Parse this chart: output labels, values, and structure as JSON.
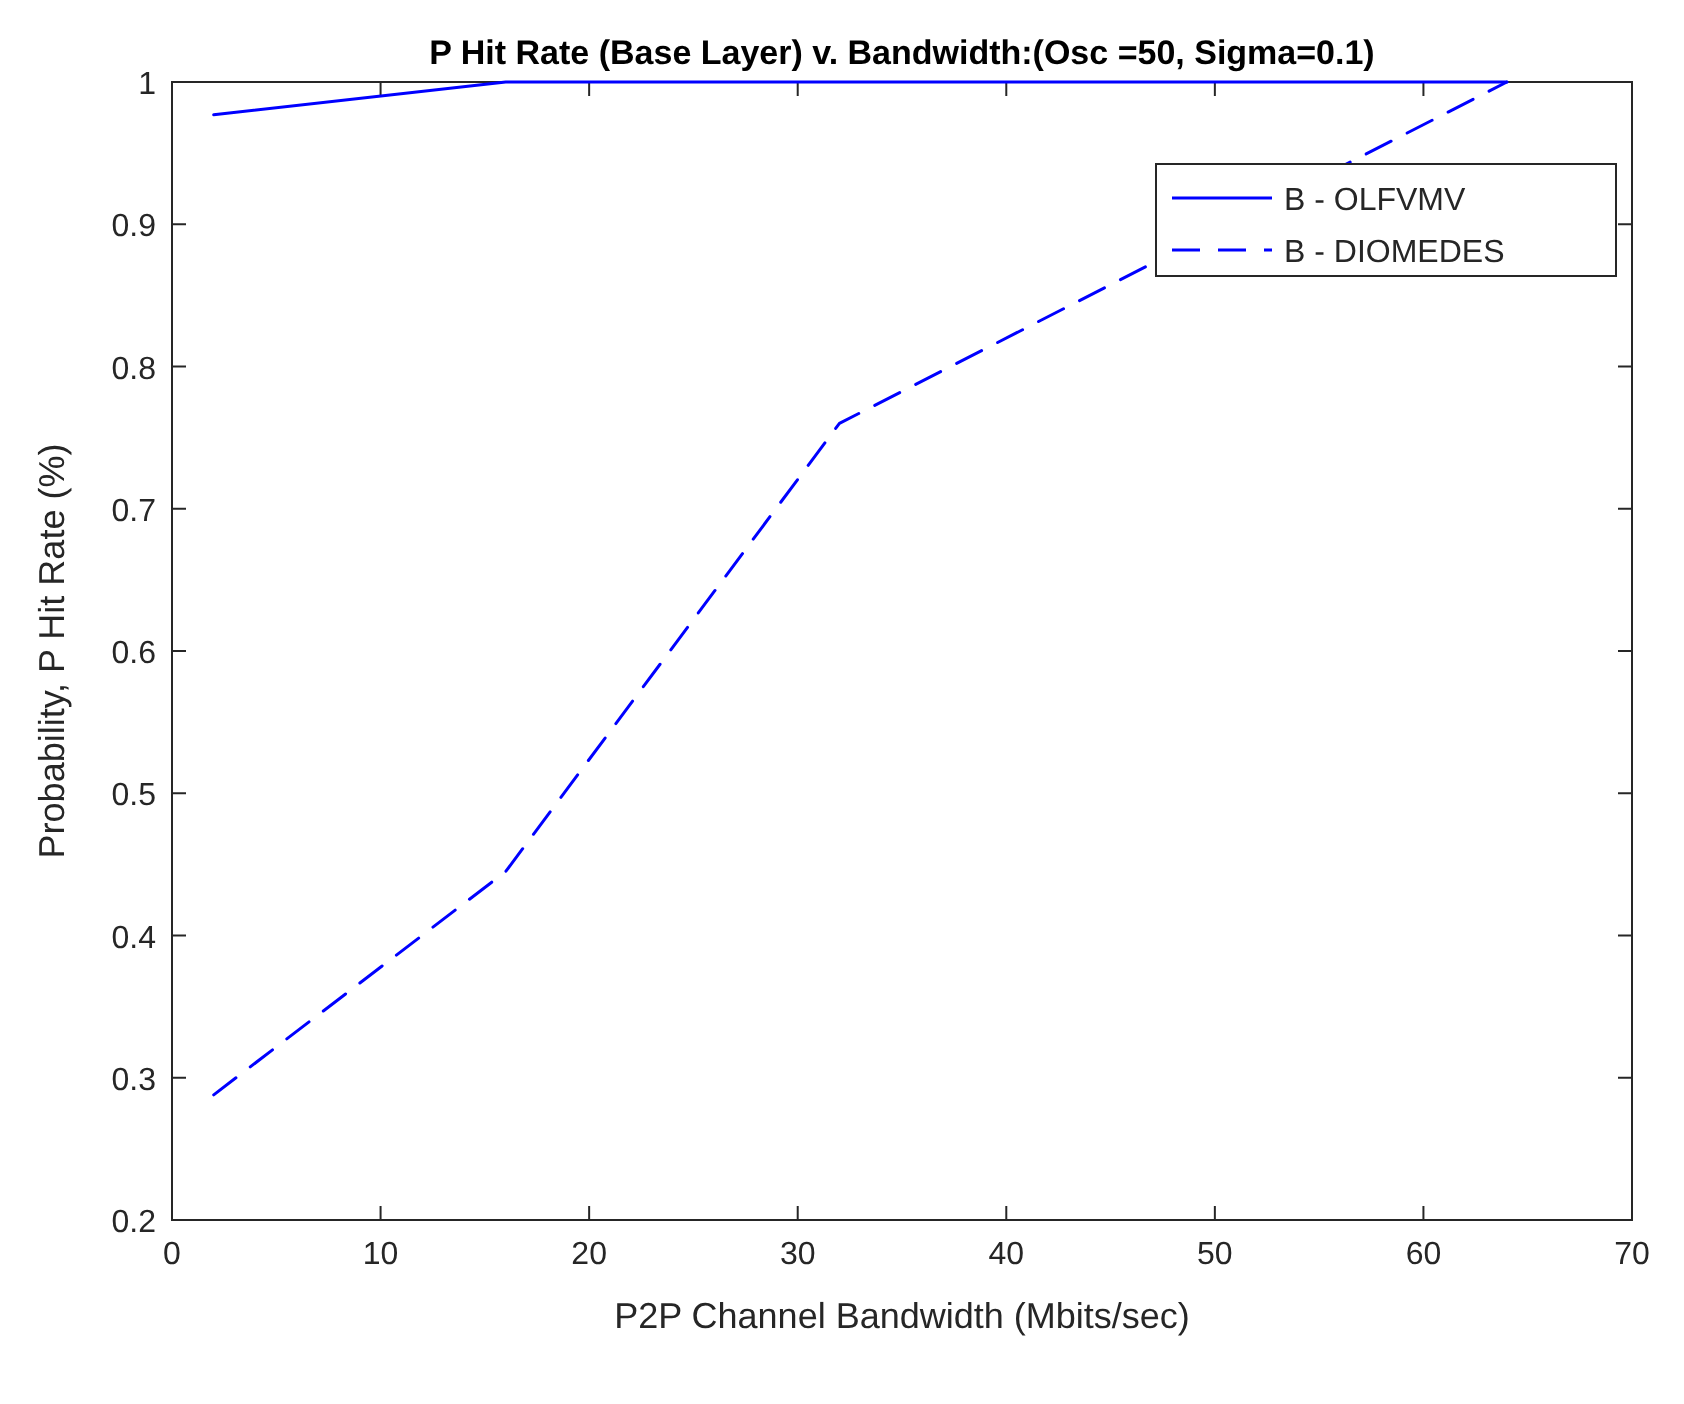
{
  "chart_data": {
    "type": "line",
    "title": "P Hit Rate (Base Layer) v. Bandwidth:(Osc =50, Sigma=0.1)",
    "xlabel": "P2P Channel Bandwidth (Mbits/sec)",
    "ylabel": "Probability, P Hit Rate (%)",
    "x": [
      2,
      16,
      32,
      48,
      64
    ],
    "series": [
      {
        "name": "B - OLFVMV",
        "color": "#0000ff",
        "values": [
          0.977,
          1,
          1,
          1,
          1
        ],
        "line_style": "solid"
      },
      {
        "name": "B - DIOMEDES",
        "color": "#0000ff",
        "values": [
          0.288,
          0.445,
          0.76,
          0.88,
          1
        ],
        "line_style": "dashed"
      }
    ],
    "xlim": [
      0,
      70
    ],
    "xticks": [
      0,
      10,
      20,
      30,
      40,
      50,
      60,
      70
    ],
    "ylim": [
      0.2,
      1
    ],
    "yticks": [
      0.2,
      0.3,
      0.4,
      0.5,
      0.6,
      0.7,
      0.8,
      0.9,
      1
    ],
    "grid": false,
    "legend": "top right"
  }
}
